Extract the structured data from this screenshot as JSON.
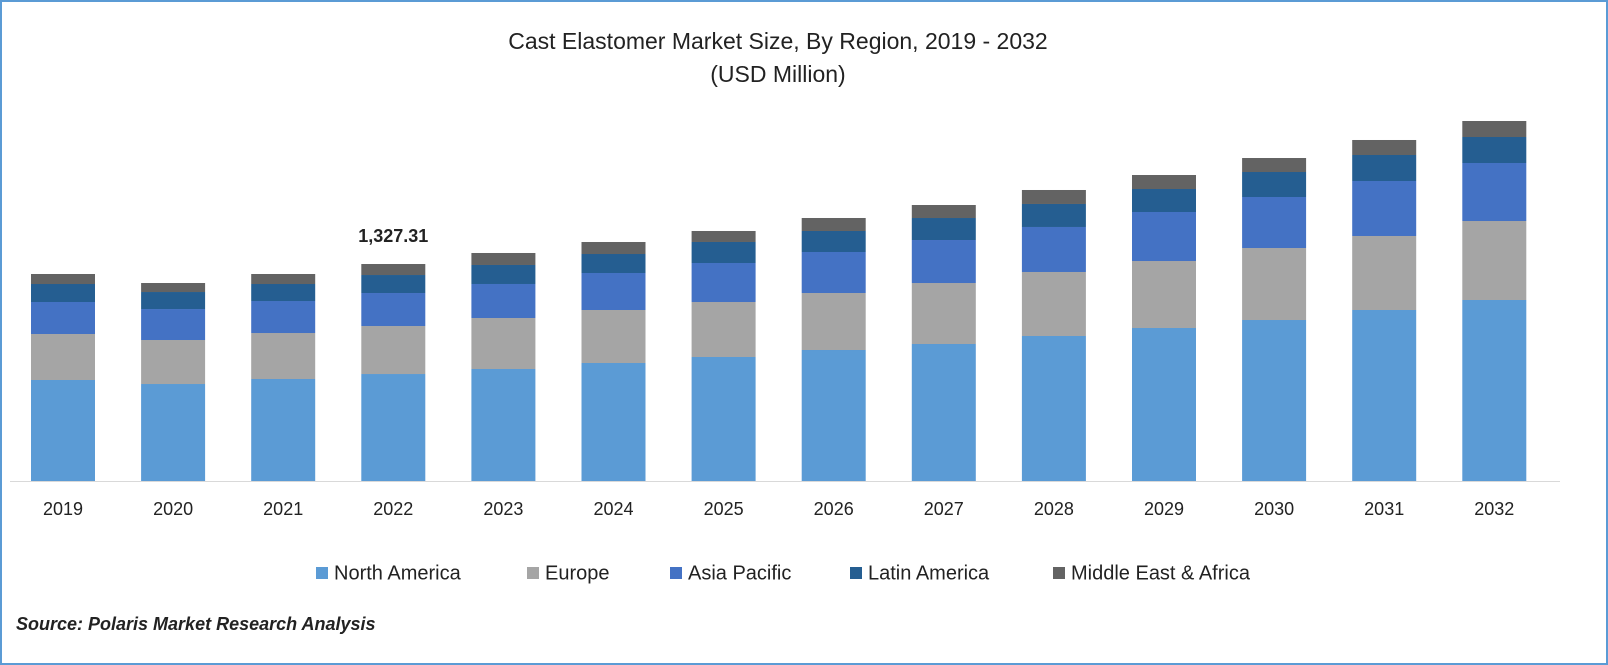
{
  "chart_data": {
    "type": "stacked_bar",
    "title": "Cast Elastomer Market Size, By Region, 2019 - 2032",
    "subtitle": "(USD Million)",
    "source": "Source: Polaris Market Research Analysis",
    "categories": [
      "2019",
      "2020",
      "2021",
      "2022",
      "2023",
      "2024",
      "2025",
      "2026",
      "2027",
      "2028",
      "2029",
      "2030",
      "2031",
      "2032"
    ],
    "series": [
      {
        "name": "North America",
        "color": "#5b9bd5",
        "values": [
          617.8,
          593.3,
          623.9,
          654.41,
          685.1,
          721.8,
          758.5,
          801.3,
          838.0,
          887.0,
          935.9,
          984.8,
          1046.0,
          1107.2
        ]
      },
      {
        "name": "Europe",
        "color": "#a5a5a5",
        "values": [
          281.4,
          269.1,
          281.4,
          293.6,
          312.0,
          324.2,
          336.4,
          348.7,
          373.1,
          391.5,
          409.8,
          440.4,
          452.7,
          483.2
        ]
      },
      {
        "name": "Asia Pacific",
        "color": "#4472c4",
        "values": [
          195.7,
          189.6,
          195.7,
          201.9,
          208.0,
          226.3,
          238.6,
          250.8,
          263.0,
          275.3,
          299.7,
          312.0,
          336.4,
          354.8
        ]
      },
      {
        "name": "Latin America",
        "color": "#255e91",
        "values": [
          110.1,
          104.0,
          104.0,
          110.1,
          116.2,
          116.2,
          128.5,
          128.5,
          134.6,
          140.7,
          140.7,
          152.9,
          159.0,
          159.0
        ]
      },
      {
        "name": "Middle East & Africa",
        "color": "#636363",
        "values": [
          61.2,
          55.1,
          61.2,
          67.3,
          73.4,
          73.4,
          67.3,
          79.5,
          79.5,
          85.6,
          85.6,
          85.6,
          91.8,
          97.9
        ]
      }
    ],
    "data_label": {
      "category": "2022",
      "value": 1327.31,
      "label": "1,327.31"
    }
  }
}
